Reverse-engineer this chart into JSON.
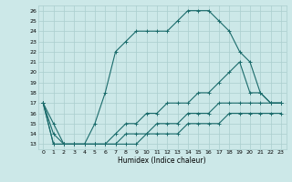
{
  "xlabel": "Humidex (Indice chaleur)",
  "ylabel": "",
  "background_color": "#cce8e8",
  "grid_color": "#aacece",
  "line_color": "#1a6b6b",
  "xlim": [
    -0.5,
    23.5
  ],
  "ylim": [
    12.5,
    26.5
  ],
  "yticks": [
    13,
    14,
    15,
    16,
    17,
    18,
    19,
    20,
    21,
    22,
    23,
    24,
    25,
    26
  ],
  "xticks": [
    0,
    1,
    2,
    3,
    4,
    5,
    6,
    7,
    8,
    9,
    10,
    11,
    12,
    13,
    14,
    15,
    16,
    17,
    18,
    19,
    20,
    21,
    22,
    23
  ],
  "series": [
    [
      17,
      15,
      13,
      13,
      13,
      15,
      18,
      22,
      23,
      24,
      24,
      24,
      24,
      25,
      26,
      26,
      26,
      25,
      24,
      22,
      21,
      18,
      17,
      17
    ],
    [
      17,
      14,
      13,
      13,
      13,
      13,
      13,
      14,
      15,
      15,
      16,
      16,
      17,
      17,
      17,
      18,
      18,
      19,
      20,
      21,
      18,
      18,
      17,
      17
    ],
    [
      17,
      13,
      13,
      13,
      13,
      13,
      13,
      13,
      14,
      14,
      14,
      15,
      15,
      15,
      16,
      16,
      16,
      17,
      17,
      17,
      17,
      17,
      17,
      17
    ],
    [
      17,
      13,
      13,
      13,
      13,
      13,
      13,
      13,
      13,
      13,
      14,
      14,
      14,
      14,
      15,
      15,
      15,
      15,
      16,
      16,
      16,
      16,
      16,
      16
    ]
  ]
}
